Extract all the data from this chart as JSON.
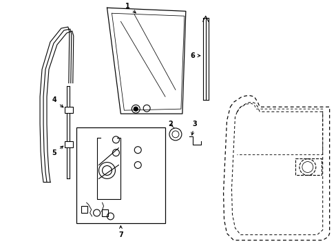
{
  "background_color": "#ffffff",
  "figure_width": 4.89,
  "figure_height": 3.6,
  "dpi": 100,
  "line_color": "#000000",
  "line_width": 0.8
}
